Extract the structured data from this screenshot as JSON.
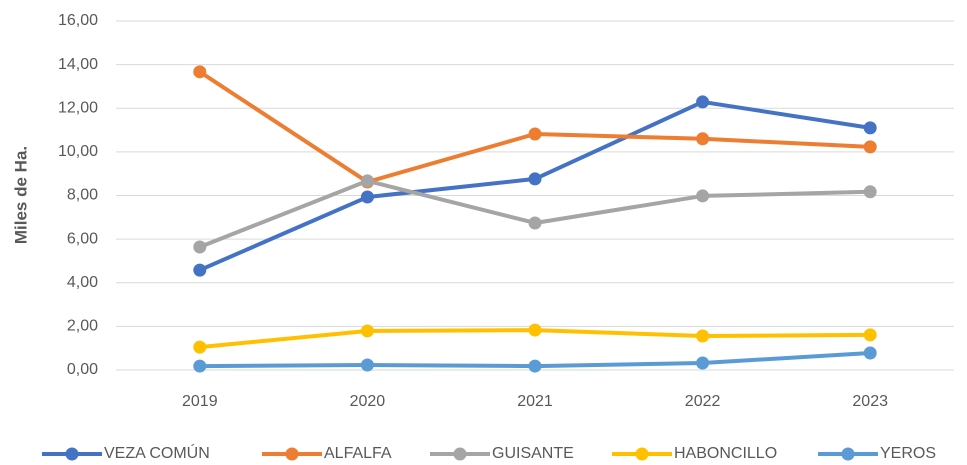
{
  "chart_data": {
    "type": "line",
    "y_label": "Miles de Ha.",
    "categories": [
      "2019",
      "2020",
      "2021",
      "2022",
      "2023"
    ],
    "series": [
      {
        "name": "VEZA COMÚN",
        "color": "#4472c4",
        "values": [
          4.58,
          7.93,
          8.76,
          12.29,
          11.1
        ]
      },
      {
        "name": "ALFALFA",
        "color": "#ed7d31",
        "values": [
          13.67,
          8.62,
          10.82,
          10.6,
          10.23
        ]
      },
      {
        "name": "GUISANTE",
        "color": "#a5a5a5",
        "values": [
          5.64,
          8.67,
          6.74,
          7.98,
          8.17
        ]
      },
      {
        "name": "HABONCILLO",
        "color": "#ffc000",
        "values": [
          1.05,
          1.79,
          1.83,
          1.56,
          1.61
        ]
      },
      {
        "name": "YEROS",
        "color": "#5b9bd5",
        "values": [
          0.18,
          0.23,
          0.18,
          0.32,
          0.78
        ]
      }
    ],
    "ylim": [
      0,
      16
    ],
    "yticks": [
      {
        "value": 0,
        "label": "0,00"
      },
      {
        "value": 2,
        "label": "2,00"
      },
      {
        "value": 4,
        "label": "4,00"
      },
      {
        "value": 6,
        "label": "6,00"
      },
      {
        "value": 8,
        "label": "8,00"
      },
      {
        "value": 10,
        "label": "10,00"
      },
      {
        "value": 12,
        "label": "12,00"
      },
      {
        "value": 14,
        "label": "14,00"
      },
      {
        "value": 16,
        "label": "16,00"
      }
    ],
    "grid": true,
    "legend": "bottom"
  }
}
